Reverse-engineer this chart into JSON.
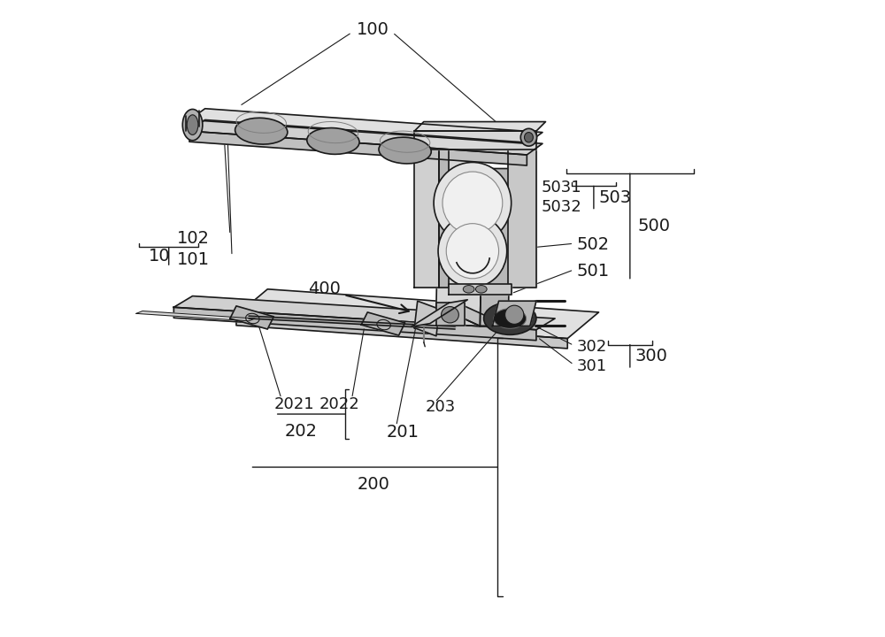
{
  "bg_color": "#ffffff",
  "line_color": "#1a1a1a",
  "figsize": [
    10.0,
    7.2
  ],
  "dpi": 100
}
